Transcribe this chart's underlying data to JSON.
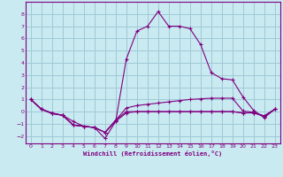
{
  "xlabel": "Windchill (Refroidissement éolien,°C)",
  "background_color": "#c8eaf0",
  "grid_color": "#a0c8d8",
  "line_color": "#800080",
  "xlim": [
    -0.5,
    23.5
  ],
  "ylim": [
    -2.6,
    9.0
  ],
  "xticks": [
    0,
    1,
    2,
    3,
    4,
    5,
    6,
    7,
    8,
    9,
    10,
    11,
    12,
    13,
    14,
    15,
    16,
    17,
    18,
    19,
    20,
    21,
    22,
    23
  ],
  "yticks": [
    -2,
    -1,
    0,
    1,
    2,
    3,
    4,
    5,
    6,
    7,
    8
  ],
  "series_main_x": [
    0,
    1,
    2,
    3,
    4,
    5,
    6,
    7,
    8,
    9,
    10,
    11,
    12,
    13,
    14,
    15,
    16,
    17,
    18,
    19,
    20,
    21,
    22,
    23
  ],
  "series_main_y": [
    1.0,
    0.2,
    -0.15,
    -0.3,
    -1.1,
    -1.2,
    -1.3,
    -2.2,
    -0.8,
    4.3,
    6.6,
    7.0,
    8.2,
    7.0,
    7.0,
    6.8,
    5.5,
    3.2,
    2.7,
    2.6,
    1.2,
    0.1,
    -0.5,
    0.2
  ],
  "series_mid_x": [
    0,
    1,
    2,
    3,
    4,
    5,
    6,
    7,
    8,
    9,
    10,
    11,
    12,
    13,
    14,
    15,
    16,
    17,
    18,
    19,
    20,
    21,
    22,
    23
  ],
  "series_mid_y": [
    1.0,
    0.2,
    -0.15,
    -0.3,
    -1.1,
    -1.2,
    -1.3,
    -1.7,
    -0.7,
    0.3,
    0.5,
    0.6,
    0.7,
    0.8,
    0.9,
    1.0,
    1.05,
    1.1,
    1.1,
    1.1,
    0.05,
    -0.05,
    -0.35,
    0.2
  ],
  "series_low_x": [
    0,
    1,
    2,
    3,
    4,
    5,
    6,
    7,
    8,
    9,
    10,
    11,
    12,
    13,
    14,
    15,
    16,
    17,
    18,
    19,
    20,
    21,
    22,
    23
  ],
  "series_low_y": [
    1.0,
    0.2,
    -0.15,
    -0.3,
    -1.1,
    -1.2,
    -1.3,
    -1.7,
    -0.7,
    0.0,
    0.0,
    0.0,
    0.0,
    0.0,
    0.0,
    0.0,
    0.0,
    0.0,
    0.0,
    0.0,
    -0.1,
    -0.1,
    -0.35,
    0.2
  ],
  "series_flat_x": [
    0,
    1,
    2,
    3,
    4,
    5,
    6,
    7,
    8,
    9,
    10,
    11,
    12,
    13,
    14,
    15,
    16,
    17,
    18,
    19,
    20,
    21,
    22,
    23
  ],
  "series_flat_y": [
    1.0,
    0.2,
    -0.1,
    -0.3,
    -0.8,
    -1.2,
    -1.3,
    -1.7,
    -0.8,
    -0.1,
    0.0,
    0.0,
    0.0,
    0.0,
    0.0,
    0.0,
    0.0,
    0.0,
    0.0,
    0.0,
    -0.1,
    -0.1,
    -0.4,
    0.2
  ]
}
